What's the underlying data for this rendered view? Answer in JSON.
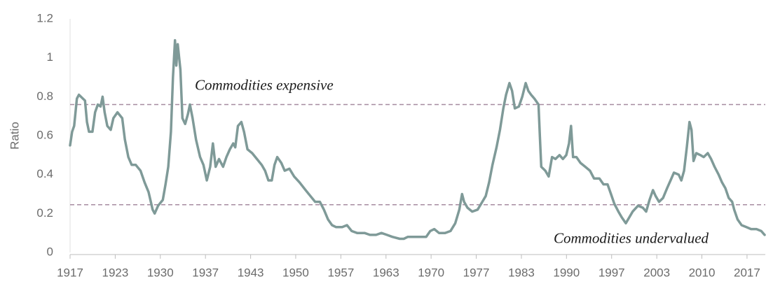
{
  "chart_data": {
    "type": "line",
    "ylabel": "Ratio",
    "color": "#7f9a98",
    "hline_color": "#a68ca0",
    "grid": false,
    "hlines": [
      {
        "value": 0.76,
        "label": "Commodities expensive"
      },
      {
        "value": 0.245,
        "label": "Commodities undervalued"
      }
    ],
    "xlim": [
      1917,
      2019.7
    ],
    "ylim": [
      0,
      1.2
    ],
    "yticks": [
      0,
      0.2,
      0.4,
      0.6,
      0.8,
      1,
      1.2
    ],
    "xticks": [
      1917,
      {
        "value": 1923.67,
        "label": "1923"
      },
      {
        "value": 1930.33,
        "label": "1930"
      },
      1937,
      {
        "value": 1943.67,
        "label": "1943"
      },
      {
        "value": 1950.33,
        "label": "1950"
      },
      1957,
      {
        "value": 1963.67,
        "label": "1963"
      },
      {
        "value": 1970.33,
        "label": "1970"
      },
      1977,
      {
        "value": 1983.67,
        "label": "1983"
      },
      {
        "value": 1990.33,
        "label": "1990"
      },
      1997,
      {
        "value": 2003.67,
        "label": "2003"
      },
      {
        "value": 2010.33,
        "label": "2010"
      },
      2017
    ],
    "x": [
      1917.0,
      1917.3,
      1917.6,
      1918.0,
      1918.3,
      1918.9,
      1919.2,
      1919.5,
      1919.8,
      1920.3,
      1920.7,
      1921.1,
      1921.5,
      1921.8,
      1922.1,
      1922.5,
      1923.0,
      1923.4,
      1924.0,
      1924.7,
      1925.1,
      1925.6,
      1926.1,
      1926.7,
      1927.4,
      1928.0,
      1928.6,
      1929.2,
      1929.5,
      1930.0,
      1930.7,
      1931.1,
      1931.5,
      1931.9,
      1932.2,
      1932.5,
      1932.7,
      1932.9,
      1933.3,
      1933.6,
      1934.0,
      1934.4,
      1934.7,
      1935.1,
      1935.6,
      1936.2,
      1936.7,
      1937.2,
      1937.7,
      1938.1,
      1938.5,
      1939.0,
      1939.6,
      1940.1,
      1940.6,
      1941.1,
      1941.4,
      1941.8,
      1942.3,
      1942.7,
      1943.2,
      1943.9,
      1944.6,
      1945.3,
      1945.8,
      1946.3,
      1946.8,
      1947.2,
      1947.6,
      1948.2,
      1948.7,
      1949.4,
      1950.1,
      1950.9,
      1951.8,
      1952.5,
      1953.2,
      1953.9,
      1954.5,
      1955.1,
      1955.7,
      1956.3,
      1957.2,
      1957.9,
      1958.6,
      1959.4,
      1960.5,
      1961.3,
      1962.2,
      1963.0,
      1963.8,
      1964.6,
      1965.7,
      1966.3,
      1966.9,
      1967.7,
      1968.8,
      1969.6,
      1970.2,
      1970.8,
      1971.5,
      1972.4,
      1973.2,
      1973.9,
      1974.5,
      1974.9,
      1975.2,
      1975.7,
      1976.4,
      1977.2,
      1977.9,
      1978.4,
      1978.9,
      1979.4,
      1980.0,
      1980.5,
      1981.0,
      1981.4,
      1981.9,
      1982.3,
      1982.7,
      1983.3,
      1983.8,
      1984.3,
      1984.7,
      1985.1,
      1985.6,
      1986.2,
      1986.4,
      1986.6,
      1987.2,
      1987.7,
      1988.2,
      1988.7,
      1989.3,
      1989.8,
      1990.3,
      1990.7,
      1991.0,
      1991.3,
      1991.8,
      1992.4,
      1993.1,
      1993.8,
      1994.4,
      1995.2,
      1995.8,
      1996.4,
      1996.9,
      1997.4,
      1998.0,
      1998.5,
      1999.1,
      1999.6,
      2000.1,
      2000.9,
      2001.6,
      2002.1,
      2002.6,
      2003.1,
      2003.5,
      2004.0,
      2004.6,
      2005.2,
      2005.7,
      2006.2,
      2006.9,
      2007.3,
      2007.7,
      2008.1,
      2008.5,
      2008.8,
      2009.1,
      2009.5,
      2010.1,
      2010.6,
      2011.2,
      2011.7,
      2012.2,
      2012.8,
      2013.3,
      2013.8,
      2014.3,
      2014.8,
      2015.1,
      2015.6,
      2016.2,
      2016.9,
      2017.6,
      2018.4,
      2019.1,
      2019.6
    ],
    "values": [
      0.55,
      0.62,
      0.65,
      0.79,
      0.81,
      0.79,
      0.78,
      0.67,
      0.62,
      0.62,
      0.72,
      0.76,
      0.75,
      0.8,
      0.72,
      0.65,
      0.63,
      0.69,
      0.72,
      0.69,
      0.58,
      0.49,
      0.45,
      0.45,
      0.42,
      0.36,
      0.31,
      0.22,
      0.2,
      0.24,
      0.27,
      0.35,
      0.44,
      0.62,
      0.9,
      1.09,
      0.96,
      1.07,
      0.94,
      0.69,
      0.66,
      0.71,
      0.76,
      0.69,
      0.58,
      0.49,
      0.45,
      0.37,
      0.44,
      0.56,
      0.44,
      0.48,
      0.44,
      0.49,
      0.53,
      0.56,
      0.54,
      0.65,
      0.67,
      0.62,
      0.53,
      0.51,
      0.48,
      0.45,
      0.42,
      0.37,
      0.37,
      0.45,
      0.49,
      0.46,
      0.42,
      0.43,
      0.39,
      0.36,
      0.32,
      0.29,
      0.26,
      0.26,
      0.22,
      0.17,
      0.14,
      0.13,
      0.13,
      0.14,
      0.11,
      0.1,
      0.1,
      0.09,
      0.09,
      0.1,
      0.09,
      0.08,
      0.07,
      0.07,
      0.08,
      0.08,
      0.08,
      0.08,
      0.11,
      0.12,
      0.1,
      0.1,
      0.11,
      0.15,
      0.22,
      0.3,
      0.26,
      0.23,
      0.21,
      0.22,
      0.26,
      0.29,
      0.36,
      0.45,
      0.54,
      0.63,
      0.74,
      0.81,
      0.87,
      0.83,
      0.74,
      0.75,
      0.8,
      0.87,
      0.83,
      0.81,
      0.79,
      0.76,
      0.6,
      0.44,
      0.42,
      0.39,
      0.49,
      0.48,
      0.5,
      0.48,
      0.5,
      0.56,
      0.65,
      0.49,
      0.49,
      0.46,
      0.44,
      0.42,
      0.38,
      0.38,
      0.35,
      0.35,
      0.3,
      0.25,
      0.21,
      0.18,
      0.15,
      0.18,
      0.21,
      0.24,
      0.23,
      0.21,
      0.27,
      0.32,
      0.29,
      0.26,
      0.28,
      0.33,
      0.37,
      0.41,
      0.4,
      0.37,
      0.42,
      0.54,
      0.67,
      0.63,
      0.47,
      0.51,
      0.5,
      0.49,
      0.51,
      0.48,
      0.44,
      0.4,
      0.36,
      0.33,
      0.28,
      0.26,
      0.22,
      0.17,
      0.14,
      0.13,
      0.12,
      0.12,
      0.11,
      0.09
    ]
  }
}
